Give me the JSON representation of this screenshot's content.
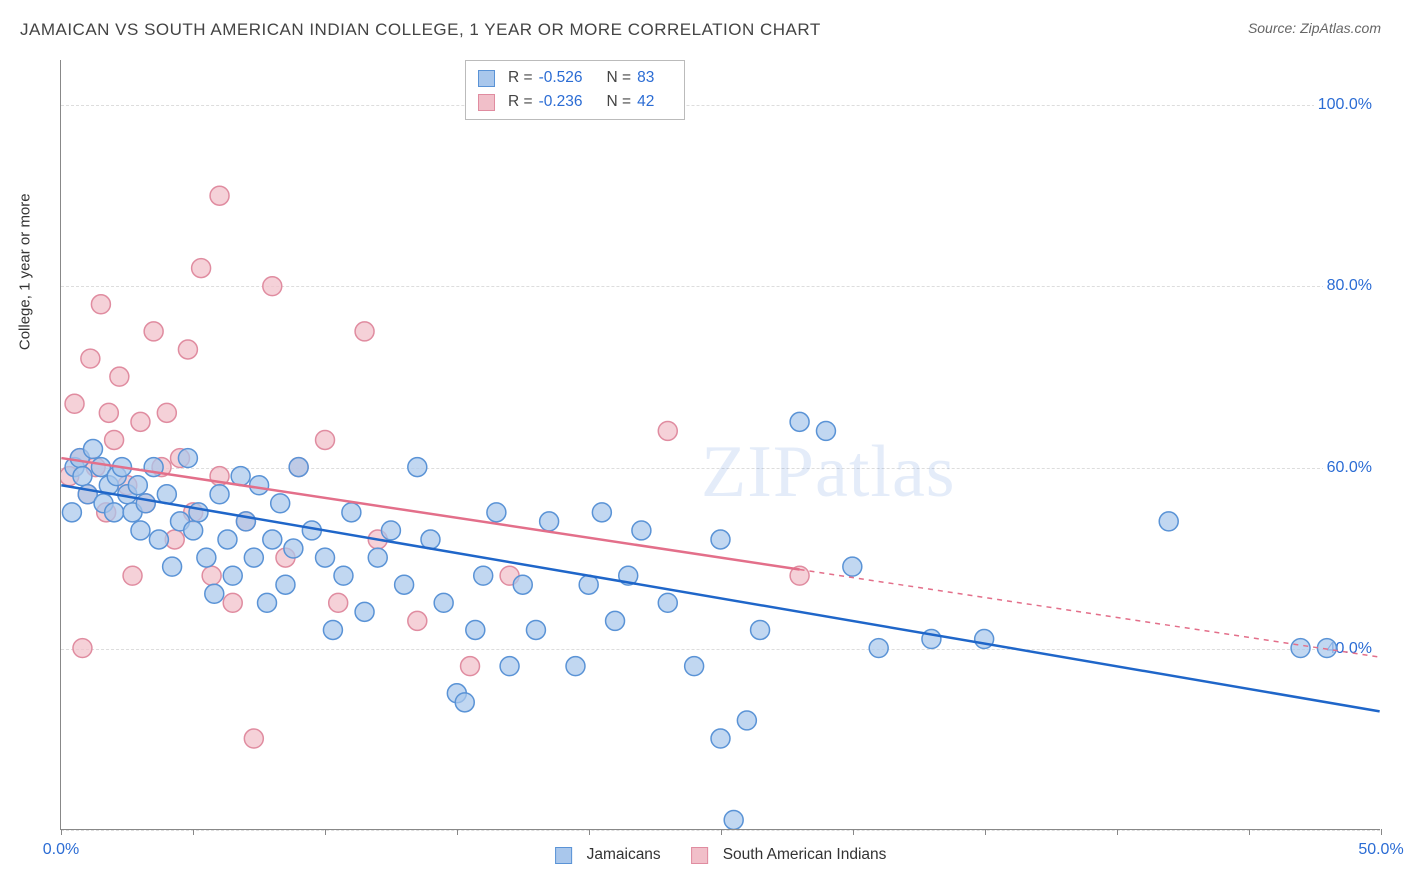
{
  "title": "JAMAICAN VS SOUTH AMERICAN INDIAN COLLEGE, 1 YEAR OR MORE CORRELATION CHART",
  "source_label": "Source: ",
  "source_name": "ZipAtlas.com",
  "ylabel": "College, 1 year or more",
  "watermark": "ZIPatlas",
  "chart": {
    "type": "scatter",
    "xlim": [
      0,
      50
    ],
    "ylim": [
      20,
      105
    ],
    "xticks": [
      0,
      5,
      10,
      15,
      20,
      25,
      30,
      35,
      40,
      45,
      50
    ],
    "xtick_labels": {
      "0": "0.0%",
      "50": "50.0%"
    },
    "yticks": [
      40,
      60,
      80,
      100
    ],
    "ytick_labels": {
      "40": "40.0%",
      "60": "60.0%",
      "80": "80.0%",
      "100": "100.0%"
    },
    "grid_y": [
      20,
      40,
      60,
      80,
      100
    ],
    "background_color": "#ffffff",
    "grid_color": "#dddddd",
    "axis_color": "#888888",
    "axis_label_color": "#2b6cd4",
    "point_radius": 9.5,
    "point_stroke_width": 1.5,
    "line_width": 2.5
  },
  "series": [
    {
      "name": "Jamaicans",
      "fill_color": "#a9c7ec",
      "stroke_color": "#5a93d6",
      "line_color": "#1f66c9",
      "R": "-0.526",
      "N": "83",
      "trend": {
        "x1": 0,
        "y1": 58,
        "x2": 50,
        "y2": 33,
        "solid_until_x": 50
      },
      "points": [
        [
          0.4,
          55
        ],
        [
          0.5,
          60
        ],
        [
          0.7,
          61
        ],
        [
          0.8,
          59
        ],
        [
          1.0,
          57
        ],
        [
          1.2,
          62
        ],
        [
          1.5,
          60
        ],
        [
          1.6,
          56
        ],
        [
          1.8,
          58
        ],
        [
          2.0,
          55
        ],
        [
          2.1,
          59
        ],
        [
          2.3,
          60
        ],
        [
          2.5,
          57
        ],
        [
          2.7,
          55
        ],
        [
          2.9,
          58
        ],
        [
          3.0,
          53
        ],
        [
          3.2,
          56
        ],
        [
          3.5,
          60
        ],
        [
          3.7,
          52
        ],
        [
          4.0,
          57
        ],
        [
          4.2,
          49
        ],
        [
          4.5,
          54
        ],
        [
          4.8,
          61
        ],
        [
          5.0,
          53
        ],
        [
          5.2,
          55
        ],
        [
          5.5,
          50
        ],
        [
          5.8,
          46
        ],
        [
          6.0,
          57
        ],
        [
          6.3,
          52
        ],
        [
          6.5,
          48
        ],
        [
          6.8,
          59
        ],
        [
          7.0,
          54
        ],
        [
          7.3,
          50
        ],
        [
          7.5,
          58
        ],
        [
          7.8,
          45
        ],
        [
          8.0,
          52
        ],
        [
          8.3,
          56
        ],
        [
          8.5,
          47
        ],
        [
          8.8,
          51
        ],
        [
          9.0,
          60
        ],
        [
          9.5,
          53
        ],
        [
          10.0,
          50
        ],
        [
          10.3,
          42
        ],
        [
          10.7,
          48
        ],
        [
          11.0,
          55
        ],
        [
          11.5,
          44
        ],
        [
          12.0,
          50
        ],
        [
          12.5,
          53
        ],
        [
          13.0,
          47
        ],
        [
          13.5,
          60
        ],
        [
          14.0,
          52
        ],
        [
          14.5,
          45
        ],
        [
          15.0,
          35
        ],
        [
          15.3,
          34
        ],
        [
          15.7,
          42
        ],
        [
          16.0,
          48
        ],
        [
          16.5,
          55
        ],
        [
          17.0,
          38
        ],
        [
          17.5,
          47
        ],
        [
          18.0,
          42
        ],
        [
          18.5,
          54
        ],
        [
          19.5,
          38
        ],
        [
          20.0,
          47
        ],
        [
          20.5,
          55
        ],
        [
          21.0,
          43
        ],
        [
          21.5,
          48
        ],
        [
          22.0,
          53
        ],
        [
          23.0,
          45
        ],
        [
          24.0,
          38
        ],
        [
          25.0,
          52
        ],
        [
          25.0,
          30
        ],
        [
          25.5,
          21
        ],
        [
          26.0,
          32
        ],
        [
          26.5,
          42
        ],
        [
          28.0,
          65
        ],
        [
          29.0,
          64
        ],
        [
          30.0,
          49
        ],
        [
          31.0,
          40
        ],
        [
          33.0,
          41
        ],
        [
          35.0,
          41
        ],
        [
          42.0,
          54
        ],
        [
          47.0,
          40
        ],
        [
          48.0,
          40
        ]
      ]
    },
    {
      "name": "South American Indians",
      "fill_color": "#f1bfc9",
      "stroke_color": "#e08ca0",
      "line_color": "#e36f8a",
      "R": "-0.236",
      "N": "42",
      "trend": {
        "x1": 0,
        "y1": 61,
        "x2": 50,
        "y2": 39,
        "solid_until_x": 28
      },
      "points": [
        [
          0.3,
          59
        ],
        [
          0.5,
          67
        ],
        [
          0.7,
          61
        ],
        [
          0.8,
          40
        ],
        [
          1.0,
          57
        ],
        [
          1.1,
          72
        ],
        [
          1.3,
          60
        ],
        [
          1.5,
          78
        ],
        [
          1.7,
          55
        ],
        [
          1.8,
          66
        ],
        [
          2.0,
          63
        ],
        [
          2.2,
          70
        ],
        [
          2.5,
          58
        ],
        [
          2.7,
          48
        ],
        [
          3.0,
          65
        ],
        [
          3.2,
          56
        ],
        [
          3.5,
          75
        ],
        [
          3.8,
          60
        ],
        [
          4.0,
          66
        ],
        [
          4.3,
          52
        ],
        [
          4.5,
          61
        ],
        [
          4.8,
          73
        ],
        [
          5.0,
          55
        ],
        [
          5.3,
          82
        ],
        [
          5.7,
          48
        ],
        [
          6.0,
          59
        ],
        [
          6.0,
          90
        ],
        [
          6.5,
          45
        ],
        [
          7.0,
          54
        ],
        [
          7.3,
          30
        ],
        [
          8.0,
          80
        ],
        [
          8.5,
          50
        ],
        [
          9.0,
          60
        ],
        [
          10.0,
          63
        ],
        [
          10.5,
          45
        ],
        [
          11.5,
          75
        ],
        [
          12.0,
          52
        ],
        [
          13.5,
          43
        ],
        [
          15.5,
          38
        ],
        [
          17.0,
          48
        ],
        [
          23.0,
          64
        ],
        [
          28.0,
          48
        ]
      ]
    }
  ],
  "stats_legend": {
    "r_label": "R =",
    "n_label": "N ="
  },
  "bottom_legend": {
    "label_0": "Jamaicans",
    "label_1": "South American Indians"
  }
}
